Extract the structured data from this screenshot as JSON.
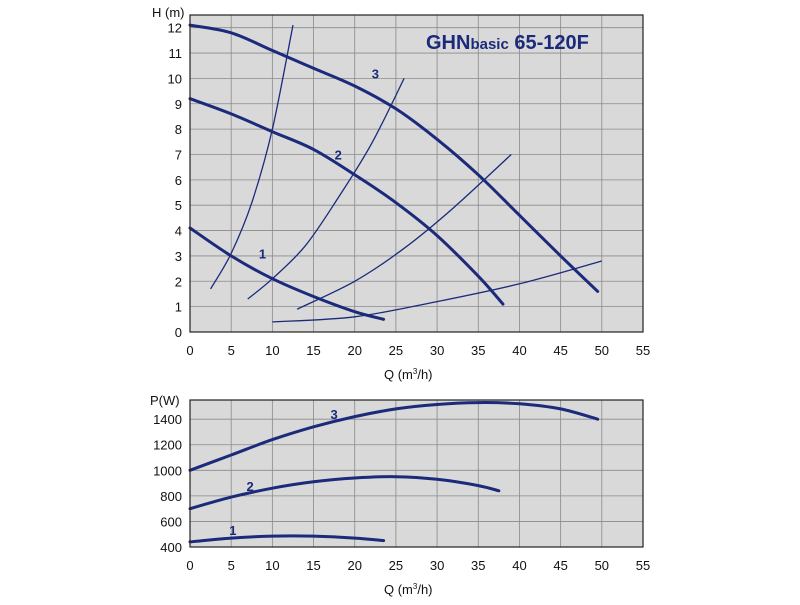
{
  "colors": {
    "plot_background": "#d9d9d9",
    "grid": "#8a8a8a",
    "curve": "#1b2a7a",
    "title": "#1b2a7a"
  },
  "chart_data": [
    {
      "type": "line",
      "title": "GHNbasic 65-120F",
      "title_main": "GHN",
      "title_sub": "basic",
      "title_end": " 65-120F",
      "xlabel": "Q (m³/h)",
      "xlabel_parts": {
        "prefix": "Q (m",
        "sup": "3",
        "suffix": "/h)"
      },
      "ylabel": "H (m)",
      "xlim": [
        0,
        55
      ],
      "ylim": [
        0,
        12.5
      ],
      "xticks": [
        0,
        5,
        10,
        15,
        20,
        25,
        30,
        35,
        40,
        45,
        50,
        55
      ],
      "yticks": [
        0,
        1,
        2,
        3,
        4,
        5,
        6,
        7,
        8,
        9,
        10,
        11,
        12
      ],
      "grid": true,
      "series": [
        {
          "name": "1",
          "x": [
            0,
            5,
            10,
            15,
            20,
            23.5
          ],
          "y": [
            4.1,
            3.0,
            2.1,
            1.4,
            0.8,
            0.5
          ],
          "label_at": [
            8.8,
            2.9
          ]
        },
        {
          "name": "2",
          "x": [
            0,
            5,
            10,
            15,
            20,
            25,
            30,
            35,
            38
          ],
          "y": [
            9.2,
            8.6,
            7.9,
            7.2,
            6.2,
            5.1,
            3.8,
            2.2,
            1.1
          ],
          "label_at": [
            18,
            6.8
          ]
        },
        {
          "name": "3",
          "x": [
            0,
            5,
            10,
            15,
            20,
            25,
            30,
            35,
            40,
            45,
            49.5
          ],
          "y": [
            12.1,
            11.8,
            11.1,
            10.4,
            9.7,
            8.8,
            7.6,
            6.2,
            4.6,
            3.0,
            1.6
          ],
          "label_at": [
            22.5,
            10.0
          ]
        }
      ],
      "system_curves": [
        {
          "x": [
            2.5,
            5,
            7.5,
            10,
            12.5
          ],
          "y": [
            1.7,
            3.1,
            5.1,
            8.0,
            12.1
          ]
        },
        {
          "x": [
            7,
            10,
            14,
            18,
            22,
            26
          ],
          "y": [
            1.3,
            2.1,
            3.4,
            5.3,
            7.4,
            10.0
          ]
        },
        {
          "x": [
            13,
            20,
            26,
            32,
            39
          ],
          "y": [
            0.9,
            2.0,
            3.3,
            4.9,
            7.0
          ]
        },
        {
          "x": [
            10,
            20,
            30,
            40,
            50
          ],
          "y": [
            0.4,
            0.6,
            1.2,
            1.9,
            2.8
          ]
        }
      ]
    },
    {
      "type": "line",
      "title": "",
      "xlabel": "Q (m³/h)",
      "xlabel_parts": {
        "prefix": "Q (m",
        "sup": "3",
        "suffix": "/h)"
      },
      "ylabel": "P(W)",
      "xlim": [
        0,
        55
      ],
      "ylim": [
        400,
        1550
      ],
      "xticks": [
        0,
        5,
        10,
        15,
        20,
        25,
        30,
        35,
        40,
        45,
        50,
        55
      ],
      "yticks": [
        400,
        600,
        800,
        1000,
        1200,
        1400
      ],
      "grid": true,
      "series": [
        {
          "name": "1",
          "x": [
            0,
            5,
            10,
            15,
            20,
            23.5
          ],
          "y": [
            440,
            470,
            485,
            485,
            470,
            450
          ],
          "label_at": [
            5.2,
            492
          ]
        },
        {
          "name": "2",
          "x": [
            0,
            5,
            10,
            15,
            20,
            25,
            30,
            35,
            37.5
          ],
          "y": [
            700,
            790,
            860,
            910,
            940,
            950,
            930,
            880,
            840
          ],
          "label_at": [
            7.3,
            840
          ]
        },
        {
          "name": "3",
          "x": [
            0,
            5,
            10,
            15,
            20,
            25,
            30,
            35,
            40,
            45,
            49.5
          ],
          "y": [
            1000,
            1120,
            1240,
            1340,
            1420,
            1480,
            1515,
            1530,
            1520,
            1480,
            1400
          ],
          "label_at": [
            17.5,
            1400
          ]
        }
      ]
    }
  ]
}
